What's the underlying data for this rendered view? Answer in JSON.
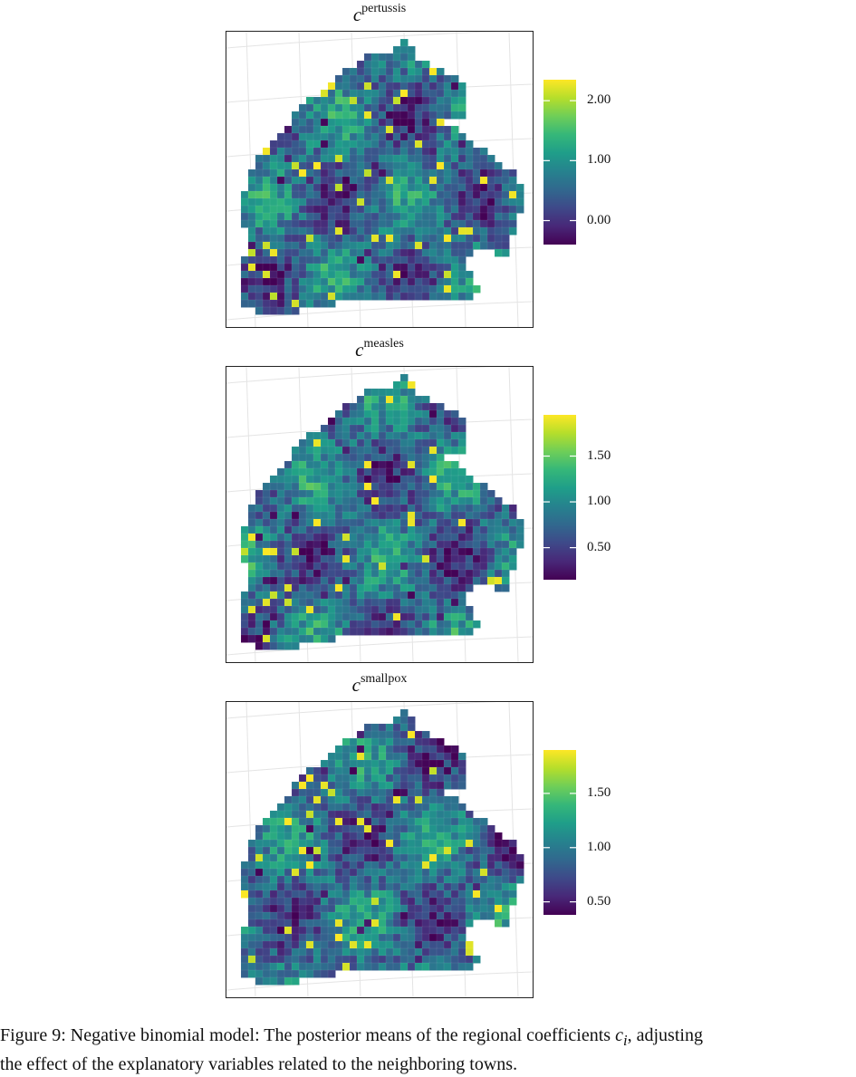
{
  "figure": {
    "caption_label": "Figure 9:",
    "caption_text_1": " Negative binomial model: The posterior means of the regional coefficients ",
    "caption_var": "c",
    "caption_sub": "i",
    "caption_text_2": ", adjusting",
    "caption_text_3": "the effect of the explanatory variables related to the neighboring towns."
  },
  "chart_data": [
    {
      "type": "choropleth",
      "title_base": "c",
      "title_sup": "pertussis",
      "colorbar": {
        "colormap": "viridis",
        "min": -0.4,
        "max": 2.35,
        "ticks": [
          0.0,
          1.0,
          2.0
        ],
        "tick_labels": [
          "0.00",
          "1.00",
          "2.00"
        ]
      },
      "grid": true
    },
    {
      "type": "choropleth",
      "title_base": "c",
      "title_sup": "measles",
      "colorbar": {
        "colormap": "viridis",
        "min": 0.15,
        "max": 1.95,
        "ticks": [
          0.5,
          1.0,
          1.5
        ],
        "tick_labels": [
          "0.50",
          "1.00",
          "1.50"
        ]
      },
      "grid": true
    },
    {
      "type": "choropleth",
      "title_base": "c",
      "title_sup": "smallpox",
      "colorbar": {
        "colormap": "viridis",
        "min": 0.38,
        "max": 1.9,
        "ticks": [
          0.5,
          1.0,
          1.5
        ],
        "tick_labels": [
          "0.50",
          "1.00",
          "1.50"
        ]
      },
      "grid": true
    }
  ],
  "colors": {
    "viridis": [
      "#440154",
      "#482878",
      "#3e4989",
      "#31688e",
      "#26828e",
      "#1f9e89",
      "#35b779",
      "#6ece58",
      "#b5de2b",
      "#fde725"
    ]
  }
}
